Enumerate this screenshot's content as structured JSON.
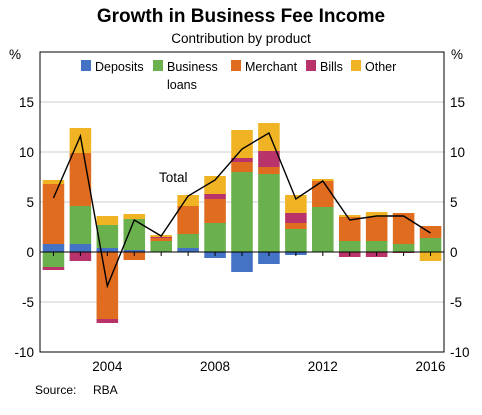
{
  "chart_data": {
    "type": "bar",
    "stacked": true,
    "title": "Growth in Business Fee Income",
    "subtitle": "Contribution by product",
    "y_unit_left": "%",
    "y_unit_right": "%",
    "ylim": [
      -10,
      20
    ],
    "yticks": [
      -10,
      -5,
      0,
      5,
      10,
      15
    ],
    "xlim": [
      2001.5,
      2016.5
    ],
    "xticks": [
      2004,
      2008,
      2012,
      2016
    ],
    "grid": true,
    "legend_position": "top",
    "x": [
      2002,
      2003,
      2004,
      2005,
      2006,
      2007,
      2008,
      2009,
      2010,
      2011,
      2012,
      2013,
      2014,
      2015,
      2016
    ],
    "series": [
      {
        "name": "Deposits",
        "color": "#4472c4",
        "values": [
          0.8,
          0.8,
          0.4,
          0.2,
          0.0,
          0.4,
          -0.6,
          -2.0,
          -1.2,
          -0.3,
          0.0,
          0.0,
          0.0,
          0.0,
          0.0
        ]
      },
      {
        "name": "Business loans",
        "color": "#6ab04c",
        "values": [
          -1.5,
          3.8,
          2.3,
          3.1,
          1.1,
          1.4,
          2.9,
          8.0,
          7.8,
          2.3,
          4.5,
          1.1,
          1.1,
          0.8,
          1.4
        ]
      },
      {
        "name": "Merchant",
        "color": "#e06c20",
        "values": [
          6.0,
          5.3,
          -6.7,
          -0.8,
          0.3,
          2.8,
          2.4,
          1.0,
          0.7,
          0.6,
          2.6,
          2.4,
          2.4,
          3.1,
          1.2
        ]
      },
      {
        "name": "Bills",
        "color": "#b8336a",
        "values": [
          -0.3,
          -0.9,
          -0.4,
          0.0,
          0.1,
          0.0,
          0.5,
          0.4,
          1.6,
          1.0,
          0.0,
          -0.5,
          -0.5,
          -0.1,
          0.0
        ]
      },
      {
        "name": "Other",
        "color": "#f0b323",
        "values": [
          0.4,
          2.5,
          0.9,
          0.5,
          0.2,
          1.1,
          1.8,
          2.8,
          2.8,
          1.8,
          0.2,
          0.2,
          0.5,
          0.0,
          -0.9
        ]
      }
    ],
    "total": {
      "name": "Total",
      "values": [
        5.4,
        11.6,
        -3.4,
        3.2,
        1.6,
        5.6,
        7.2,
        10.3,
        11.9,
        5.3,
        7.1,
        3.2,
        3.6,
        3.6,
        1.9
      ]
    }
  },
  "legend": {
    "deposits": "Deposits",
    "business_line1": "Business",
    "business_line2": "loans",
    "merchant": "Merchant",
    "bills": "Bills",
    "other": "Other"
  },
  "annotation": {
    "total_label": "Total"
  },
  "source": {
    "label": "Source:",
    "value": "RBA"
  }
}
